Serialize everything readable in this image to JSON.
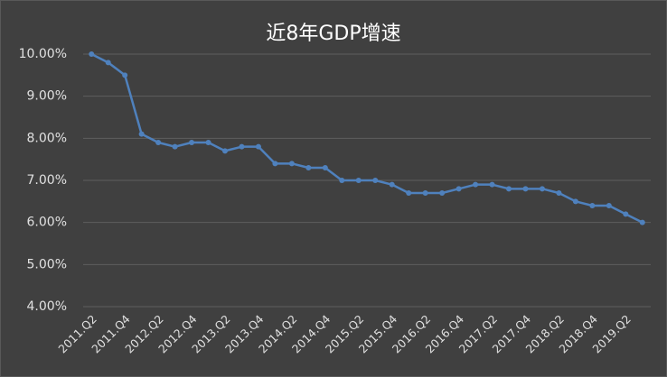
{
  "chart_data": {
    "type": "line",
    "title": "近8年GDP增速",
    "categories": [
      "2011.Q2",
      null,
      "2011.Q4",
      null,
      "2012.Q2",
      null,
      "2012.Q4",
      null,
      "2013.Q2",
      null,
      "2013.Q4",
      null,
      "2014.Q2",
      null,
      "2014.Q4",
      null,
      "2015.Q2",
      null,
      "2015.Q4",
      null,
      "2016.Q2",
      null,
      "2016.Q4",
      null,
      "2017.Q2",
      null,
      "2017.Q4",
      null,
      "2018.Q2",
      null,
      "2018.Q4",
      null,
      "2019.Q2",
      null
    ],
    "series": [
      {
        "color": "#4f81bd",
        "values": [
          10.0,
          9.8,
          9.5,
          8.1,
          7.9,
          7.8,
          7.9,
          7.9,
          7.7,
          7.8,
          7.8,
          7.4,
          7.4,
          7.3,
          7.3,
          7.0,
          7.0,
          7.0,
          6.9,
          6.7,
          6.7,
          6.7,
          6.8,
          6.9,
          6.9,
          6.8,
          6.8,
          6.8,
          6.7,
          6.5,
          6.4,
          6.4,
          6.2,
          6.0
        ]
      }
    ],
    "ylim": [
      4,
      10
    ],
    "yticks": [
      {
        "value": 4,
        "label": "4.00%"
      },
      {
        "value": 5,
        "label": "5.00%"
      },
      {
        "value": 6,
        "label": "6.00%"
      },
      {
        "value": 7,
        "label": "7.00%"
      },
      {
        "value": 8,
        "label": "8.00%"
      },
      {
        "value": 9,
        "label": "9.00%"
      },
      {
        "value": 10,
        "label": "10.00%"
      }
    ],
    "grid": true
  }
}
